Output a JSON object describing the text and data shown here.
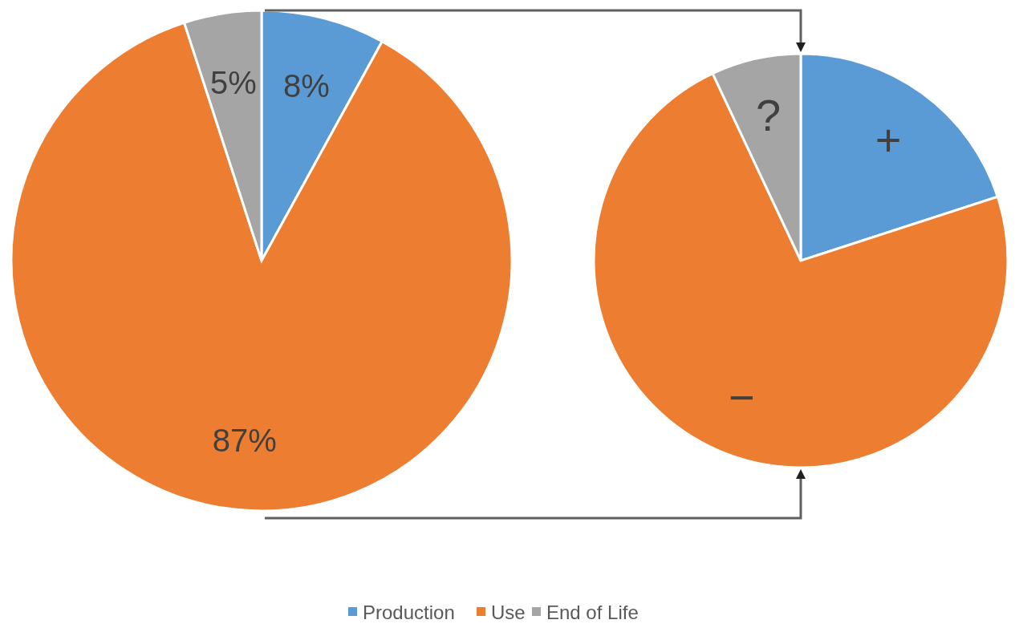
{
  "chart_data": [
    {
      "type": "pie",
      "categories": [
        "Production",
        "Use",
        "End of Life"
      ],
      "values": [
        8,
        87,
        5
      ],
      "colors": [
        "#5b9bd5",
        "#ed7d31",
        "#a5a5a5"
      ],
      "value_labels": [
        "8%",
        "87%",
        "5%"
      ],
      "legend": "bottom"
    },
    {
      "type": "pie",
      "categories": [
        null,
        null,
        null
      ],
      "values": [
        20,
        73,
        7
      ],
      "colors": [
        "#5b9bd5",
        "#ed7d31",
        "#a5a5a5"
      ],
      "value_labels": [
        "+",
        "−",
        "?"
      ]
    }
  ]
}
